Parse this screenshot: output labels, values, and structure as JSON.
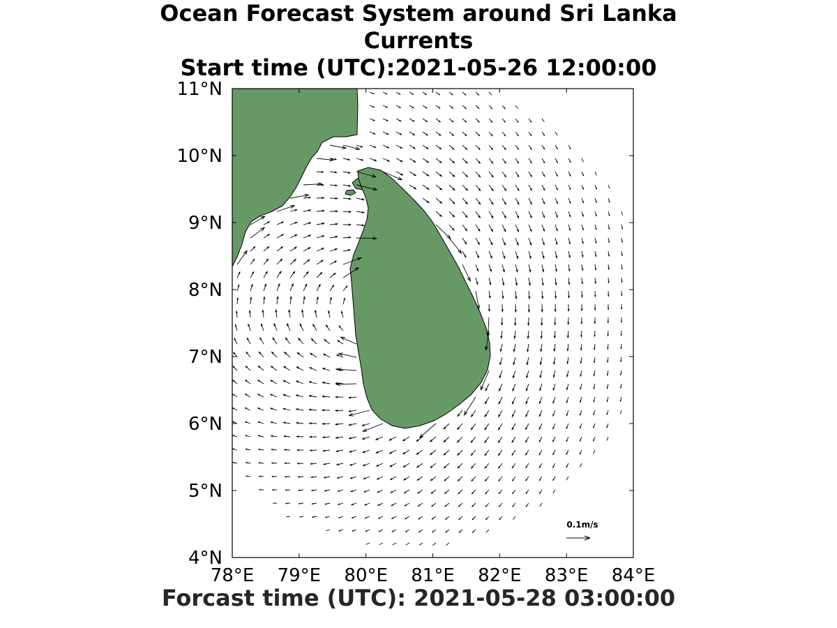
{
  "title": {
    "line1": "Ocean Forecast System around Sri Lanka",
    "line2": "Currents",
    "line3": "Start time (UTC):2021-05-26 12:00:00"
  },
  "forecast_label": "Forcast time (UTC): 2021-05-28 03:00:00",
  "map": {
    "lon_range": [
      78,
      84
    ],
    "lat_range": [
      4,
      11
    ],
    "lon_ticks": [
      "78°E",
      "79°E",
      "80°E",
      "81°E",
      "82°E",
      "83°E",
      "84°E"
    ],
    "lat_ticks": [
      "4°N",
      "5°N",
      "6°N",
      "7°N",
      "8°N",
      "9°N",
      "10°N",
      "11°N"
    ],
    "land_color": "#669966",
    "ocean_color": "#ffffff",
    "reference_vector": {
      "label": "0.1m/s",
      "speed": 0.1
    }
  }
}
